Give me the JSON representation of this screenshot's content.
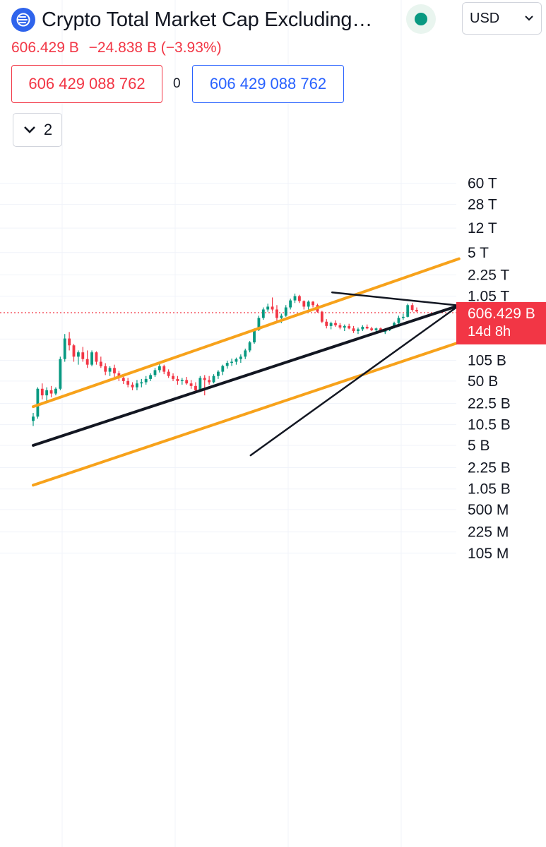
{
  "header": {
    "title": "Crypto Total Market Cap Excluding…",
    "currency": "USD",
    "price": "606.429 B",
    "change": "−24.838 B (−3.93%)",
    "sell_price": "606 429 088 762",
    "spread": "0",
    "buy_price": "606 429 088 762",
    "indicators_count": "2"
  },
  "price_tag": {
    "price": "606.429 B",
    "countdown": "14d 8h"
  },
  "colors": {
    "up": "#089981",
    "down": "#f23645",
    "channel": "#f7a21b",
    "trendline": "#131722",
    "accent": "#2962ff",
    "grid": "#f0f3fa"
  },
  "icons": {
    "symbol": "crypto-cap-icon",
    "status": "market-status-icon",
    "collapse": "chevron-down-icon"
  },
  "chart_data": {
    "type": "candlestick",
    "y_scale": "log",
    "ylim": [
      "75 M",
      "90 T"
    ],
    "y_ticks": [
      "60 T",
      "28 T",
      "12 T",
      "5 T",
      "2.25 T",
      "1.05 T",
      "225 B",
      "105 B",
      "50 B",
      "22.5 B",
      "10.5 B",
      "5 B",
      "2.25 B",
      "1.05 B",
      "500 M",
      "225 M",
      "105 M"
    ],
    "last_price": "606.429 B",
    "series": [
      {
        "values": [
          [
            12,
            16,
            10,
            14
          ],
          [
            14,
            40,
            13,
            38
          ],
          [
            38,
            46,
            26,
            30
          ],
          [
            30,
            40,
            24,
            36
          ],
          [
            36,
            42,
            28,
            32
          ],
          [
            32,
            40,
            30,
            38
          ],
          [
            38,
            120,
            36,
            110
          ],
          [
            110,
            270,
            100,
            230
          ],
          [
            230,
            290,
            150,
            180
          ],
          [
            180,
            190,
            100,
            120
          ],
          [
            120,
            150,
            90,
            140
          ],
          [
            140,
            170,
            100,
            110
          ],
          [
            110,
            150,
            80,
            90
          ],
          [
            90,
            150,
            85,
            140
          ],
          [
            140,
            145,
            90,
            100
          ],
          [
            100,
            120,
            80,
            85
          ],
          [
            85,
            95,
            62,
            70
          ],
          [
            70,
            85,
            60,
            80
          ],
          [
            80,
            90,
            58,
            66
          ],
          [
            66,
            72,
            50,
            56
          ],
          [
            56,
            62,
            45,
            50
          ],
          [
            50,
            56,
            40,
            44
          ],
          [
            44,
            48,
            36,
            40
          ],
          [
            40,
            52,
            36,
            46
          ],
          [
            46,
            54,
            40,
            48
          ],
          [
            48,
            60,
            44,
            54
          ],
          [
            54,
            66,
            50,
            62
          ],
          [
            62,
            80,
            58,
            74
          ],
          [
            74,
            92,
            68,
            85
          ],
          [
            85,
            90,
            64,
            70
          ],
          [
            70,
            76,
            56,
            60
          ],
          [
            60,
            66,
            50,
            54
          ],
          [
            54,
            60,
            44,
            50
          ],
          [
            50,
            56,
            44,
            52
          ],
          [
            52,
            58,
            44,
            46
          ],
          [
            46,
            52,
            38,
            42
          ],
          [
            42,
            48,
            34,
            36
          ],
          [
            36,
            60,
            34,
            56
          ],
          [
            56,
            62,
            30,
            52
          ],
          [
            52,
            60,
            44,
            48
          ],
          [
            48,
            64,
            46,
            60
          ],
          [
            60,
            74,
            54,
            70
          ],
          [
            70,
            90,
            62,
            86
          ],
          [
            86,
            104,
            78,
            96
          ],
          [
            96,
            112,
            86,
            100
          ],
          [
            100,
            116,
            90,
            110
          ],
          [
            110,
            130,
            96,
            120
          ],
          [
            120,
            160,
            110,
            150
          ],
          [
            150,
            210,
            140,
            200
          ],
          [
            200,
            330,
            190,
            310
          ],
          [
            310,
            520,
            300,
            480
          ],
          [
            480,
            700,
            450,
            650
          ],
          [
            650,
            800,
            600,
            720
          ],
          [
            720,
            1000,
            600,
            650
          ],
          [
            650,
            760,
            420,
            480
          ],
          [
            480,
            560,
            400,
            520
          ],
          [
            520,
            760,
            500,
            700
          ],
          [
            700,
            960,
            650,
            900
          ],
          [
            900,
            1150,
            820,
            1050
          ],
          [
            1050,
            1100,
            820,
            880
          ],
          [
            880,
            900,
            650,
            720
          ],
          [
            720,
            900,
            650,
            860
          ],
          [
            860,
            880,
            700,
            760
          ],
          [
            760,
            800,
            580,
            600
          ],
          [
            600,
            620,
            400,
            420
          ],
          [
            420,
            460,
            330,
            360
          ],
          [
            360,
            420,
            320,
            400
          ],
          [
            400,
            440,
            350,
            370
          ],
          [
            370,
            400,
            320,
            340
          ],
          [
            340,
            380,
            300,
            360
          ],
          [
            360,
            390,
            320,
            330
          ],
          [
            330,
            360,
            280,
            300
          ],
          [
            300,
            340,
            270,
            320
          ],
          [
            320,
            370,
            300,
            350
          ],
          [
            350,
            380,
            320,
            330
          ],
          [
            330,
            350,
            300,
            310
          ],
          [
            310,
            340,
            290,
            330
          ],
          [
            330,
            340,
            280,
            290
          ],
          [
            290,
            320,
            270,
            310
          ],
          [
            310,
            350,
            300,
            340
          ],
          [
            340,
            420,
            330,
            400
          ],
          [
            400,
            520,
            380,
            480
          ],
          [
            480,
            560,
            450,
            500
          ],
          [
            500,
            800,
            490,
            760
          ],
          [
            760,
            820,
            600,
            640
          ],
          [
            640,
            700,
            590,
            606
          ]
        ]
      }
    ],
    "lines": [
      {
        "name": "channel-upper",
        "from": [
          "Jan 2013",
          "20 B"
        ],
        "to": [
          "Oct 2024",
          "4 T"
        ]
      },
      {
        "name": "channel-lower",
        "from": [
          "Jan 2013",
          "1.2 B"
        ],
        "to": [
          "Oct 2024",
          "200 B"
        ]
      },
      {
        "name": "mid-trendline",
        "from": [
          "Jan 2013",
          "5 B"
        ],
        "to": [
          "Oct 2024",
          "750 B"
        ]
      },
      {
        "name": "rising-support",
        "from": [
          "Jan 2019",
          "3.5 B"
        ],
        "to": [
          "Oct 2024",
          "750 B"
        ]
      },
      {
        "name": "falling-resistance",
        "from": [
          "Apr 2021",
          "1.2 T"
        ],
        "to": [
          "Oct 2024",
          "750 B"
        ]
      }
    ]
  }
}
